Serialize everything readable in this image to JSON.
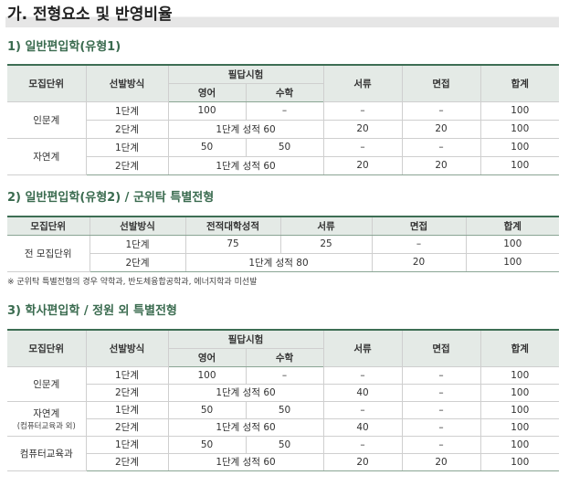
{
  "page_title": "가. 전형요소 및 반영비율",
  "section1": {
    "title": "1) 일반편입학(유형1)",
    "headers": {
      "unit": "모집단위",
      "method": "선발방식",
      "exam": "필답시험",
      "english": "영어",
      "math": "수학",
      "docs": "서류",
      "interview": "면접",
      "total": "합계"
    },
    "rows": [
      {
        "unit": "인문계",
        "stage1": {
          "method": "1단계",
          "english": "100",
          "math": "–",
          "docs": "–",
          "interview": "–",
          "total": "100"
        },
        "stage2": {
          "method": "2단계",
          "exam": "1단계 성적 60",
          "docs": "20",
          "interview": "20",
          "total": "100"
        }
      },
      {
        "unit": "자연계",
        "stage1": {
          "method": "1단계",
          "english": "50",
          "math": "50",
          "docs": "–",
          "interview": "–",
          "total": "100"
        },
        "stage2": {
          "method": "2단계",
          "exam": "1단계 성적 60",
          "docs": "20",
          "interview": "20",
          "total": "100"
        }
      }
    ]
  },
  "section2": {
    "title": "2) 일반편입학(유형2) / 군위탁 특별전형",
    "headers": {
      "unit": "모집단위",
      "method": "선발방식",
      "grades": "전적대학성적",
      "docs": "서류",
      "interview": "면접",
      "total": "합계"
    },
    "unit": "전 모집단위",
    "stage1": {
      "method": "1단계",
      "grades": "75",
      "docs": "25",
      "interview": "–",
      "total": "100"
    },
    "stage2": {
      "method": "2단계",
      "combined": "1단계 성적 80",
      "interview": "20",
      "total": "100"
    },
    "note": "※ 군위탁 특별전형의 경우 약학과, 반도체융합공학과, 에너지학과 미선발"
  },
  "section3": {
    "title": "3) 학사편입학 / 정원 외 특별전형",
    "headers": {
      "unit": "모집단위",
      "method": "선발방식",
      "exam": "필답시험",
      "english": "영어",
      "math": "수학",
      "docs": "서류",
      "interview": "면접",
      "total": "합계"
    },
    "rows": [
      {
        "unit": "인문계",
        "sub": "",
        "stage1": {
          "method": "1단계",
          "english": "100",
          "math": "–",
          "docs": "–",
          "interview": "–",
          "total": "100"
        },
        "stage2": {
          "method": "2단계",
          "exam": "1단계 성적 60",
          "docs": "40",
          "interview": "–",
          "total": "100"
        }
      },
      {
        "unit": "자연계",
        "sub": "(컴퓨터교육과 외)",
        "stage1": {
          "method": "1단계",
          "english": "50",
          "math": "50",
          "docs": "–",
          "interview": "–",
          "total": "100"
        },
        "stage2": {
          "method": "2단계",
          "exam": "1단계 성적 60",
          "docs": "40",
          "interview": "–",
          "total": "100"
        }
      },
      {
        "unit": "컴퓨터교육과",
        "sub": "",
        "stage1": {
          "method": "1단계",
          "english": "50",
          "math": "50",
          "docs": "–",
          "interview": "–",
          "total": "100"
        },
        "stage2": {
          "method": "2단계",
          "exam": "1단계 성적 60",
          "docs": "20",
          "interview": "20",
          "total": "100"
        }
      }
    ]
  }
}
